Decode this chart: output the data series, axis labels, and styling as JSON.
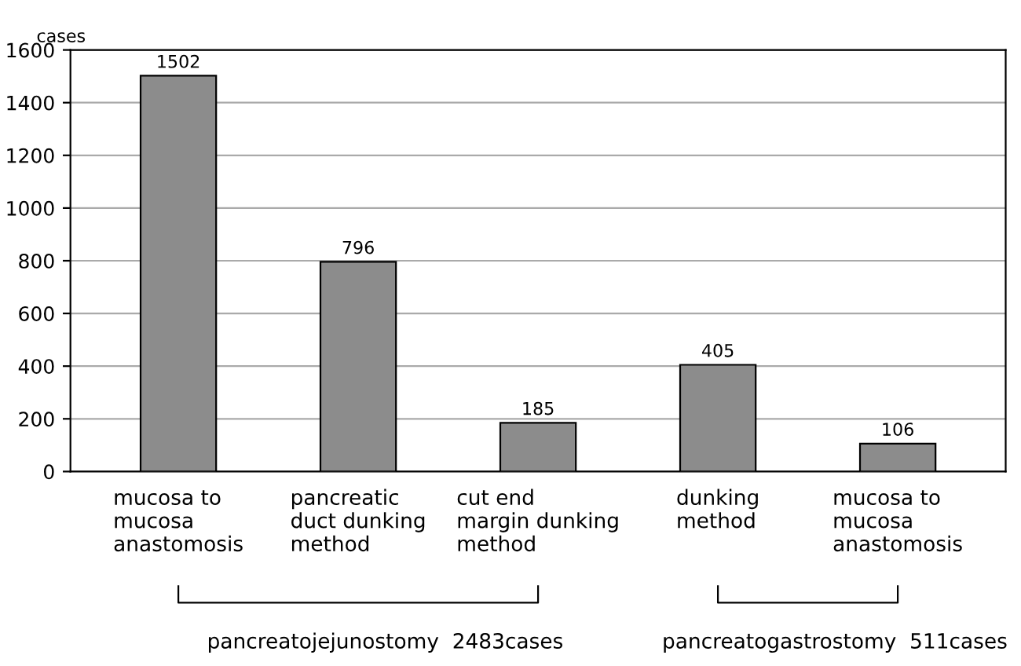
{
  "chart_data": {
    "type": "bar",
    "ylabel": "cases",
    "categories": [
      "mucosa to\nmucosa\nanastomosis",
      "pancreatic\nduct dunking\nmethod",
      "cut end\nmargin dunking\nmethod",
      "dunking\nmethod",
      "mucosa to\nmucosa\nanastomosis"
    ],
    "values": [
      1502,
      796,
      185,
      405,
      106
    ],
    "color": "#8c8c8c",
    "ylim": [
      0,
      1600
    ],
    "yticks": [
      0,
      200,
      400,
      600,
      800,
      1000,
      1200,
      1400,
      1600
    ],
    "grid": "y",
    "data_labels": true,
    "annotations": [
      "pancreatojejunostomy  2483cases",
      "pancreatogastrostomy  511cases"
    ]
  }
}
